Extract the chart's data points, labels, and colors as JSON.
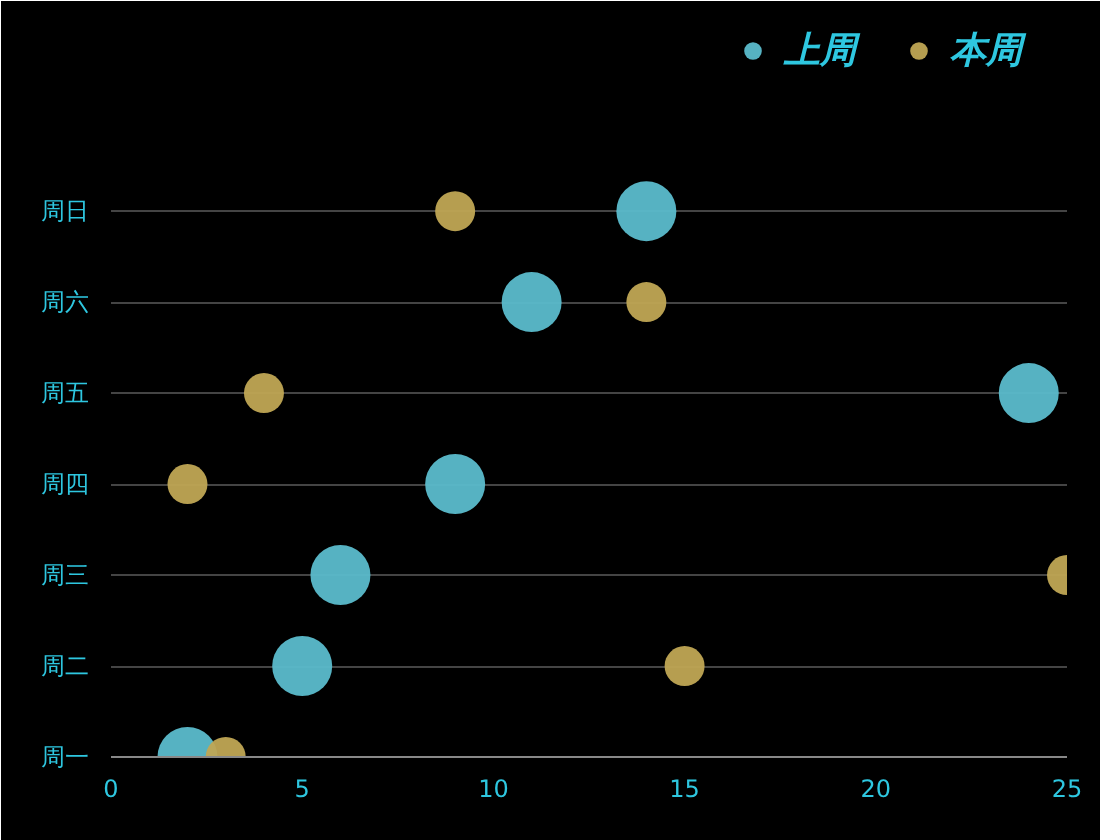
{
  "chart_data": {
    "type": "scatter",
    "orientation": "horizontal",
    "categories": [
      "周日",
      "周六",
      "周五",
      "周四",
      "周三",
      "周二",
      "周一"
    ],
    "series": [
      {
        "name": "上周",
        "color": "#5bbccc",
        "values": [
          14,
          11,
          24,
          9,
          6,
          5,
          2
        ]
      },
      {
        "name": "本周",
        "color": "#c0a654",
        "values": [
          9,
          14,
          4,
          2,
          25,
          15,
          3
        ]
      }
    ],
    "xlim": [
      0,
      25
    ],
    "xticks": [
      0,
      5,
      10,
      15,
      20,
      25
    ],
    "grid": "y",
    "legend": "top right",
    "marker": "circle"
  }
}
